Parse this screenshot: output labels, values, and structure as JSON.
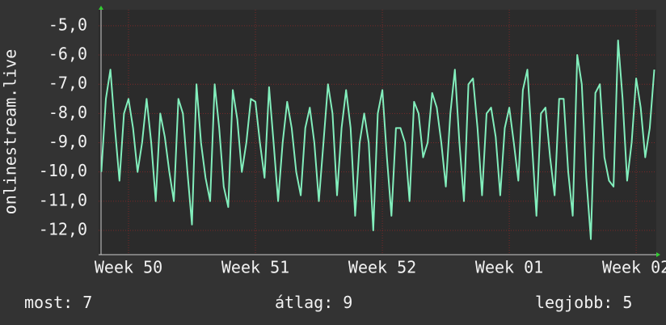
{
  "chart_data": {
    "type": "line",
    "y_label": "onlinestream.live",
    "grid": true,
    "xlim": [
      -1.65,
      29.11
    ],
    "xticks": [
      {
        "value": 0,
        "label": "Week 50"
      },
      {
        "value": 7,
        "label": "Week 51"
      },
      {
        "value": 14,
        "label": "Week 52"
      },
      {
        "value": 21,
        "label": "Week 01"
      },
      {
        "value": 28,
        "label": "Week 02"
      }
    ],
    "ylim": [
      -12.83,
      -4.45
    ],
    "yticks": [
      {
        "value": -5,
        "label": "-5,0"
      },
      {
        "value": -6,
        "label": "-6,0"
      },
      {
        "value": -7,
        "label": "-7,0"
      },
      {
        "value": -8,
        "label": "-8,0"
      },
      {
        "value": -9,
        "label": "-9,0"
      },
      {
        "value": -10,
        "label": "-10,0"
      },
      {
        "value": -11,
        "label": "-11,0"
      },
      {
        "value": -12,
        "label": "-12,0"
      }
    ],
    "x": [
      -1.5,
      -1.25,
      -1,
      -0.75,
      -0.5,
      -0.25,
      0,
      0.25,
      0.5,
      0.75,
      1,
      1.25,
      1.5,
      1.75,
      2,
      2.25,
      2.5,
      2.75,
      3,
      3.25,
      3.5,
      3.75,
      4,
      4.25,
      4.5,
      4.75,
      5,
      5.25,
      5.5,
      5.75,
      6,
      6.25,
      6.5,
      6.75,
      7,
      7.25,
      7.5,
      7.75,
      8,
      8.25,
      8.5,
      8.75,
      9,
      9.25,
      9.5,
      9.75,
      10,
      10.25,
      10.5,
      10.75,
      11,
      11.25,
      11.5,
      11.75,
      12,
      12.25,
      12.5,
      12.75,
      13,
      13.25,
      13.5,
      13.75,
      14,
      14.25,
      14.5,
      14.75,
      15,
      15.25,
      15.5,
      15.75,
      16,
      16.25,
      16.5,
      16.75,
      17,
      17.25,
      17.5,
      17.75,
      18,
      18.25,
      18.5,
      18.75,
      19,
      19.25,
      19.5,
      19.75,
      20,
      20.25,
      20.5,
      20.75,
      21,
      21.25,
      21.5,
      21.75,
      22,
      22.25,
      22.5,
      22.75,
      23,
      23.25,
      23.5,
      23.75,
      24,
      24.25,
      24.5,
      24.75,
      25,
      25.25,
      25.5,
      25.75,
      26,
      26.25,
      26.5,
      26.75,
      27,
      27.25,
      27.5,
      27.75,
      28,
      28.25,
      28.5,
      28.75,
      29
    ],
    "series": [
      {
        "color": "#82eebc",
        "values": [
          -10,
          -7.5,
          -6.5,
          -8.5,
          -10.3,
          -8,
          -7.5,
          -8.5,
          -10,
          -9,
          -7.5,
          -9,
          -11,
          -8,
          -8.8,
          -10,
          -11,
          -7.5,
          -8,
          -10,
          -11.8,
          -7,
          -9,
          -10.2,
          -11,
          -7,
          -8.5,
          -10.5,
          -11.2,
          -7.2,
          -8.2,
          -10,
          -9,
          -7.5,
          -7.6,
          -9,
          -10.2,
          -7.1,
          -9,
          -11,
          -9,
          -7.6,
          -8.5,
          -10,
          -10.8,
          -8.5,
          -7.8,
          -9,
          -11,
          -9,
          -7,
          -8,
          -10.8,
          -8.5,
          -7.2,
          -8.5,
          -11.5,
          -9,
          -8,
          -9,
          -12,
          -8,
          -7.2,
          -9.5,
          -11.5,
          -8.5,
          -8.5,
          -9,
          -11,
          -7.6,
          -8,
          -9.5,
          -9,
          -7.3,
          -7.8,
          -9,
          -10.5,
          -8,
          -6.5,
          -9,
          -11,
          -7,
          -6.8,
          -8.5,
          -10.8,
          -8,
          -7.8,
          -8.8,
          -10.8,
          -8.5,
          -7.8,
          -9,
          -10.3,
          -7.2,
          -6.5,
          -9,
          -11.5,
          -8,
          -7.8,
          -9.5,
          -10.8,
          -7.5,
          -7.5,
          -10,
          -11.5,
          -6,
          -7,
          -10.2,
          -12.3,
          -7.3,
          -7,
          -9.5,
          -10.3,
          -10.5,
          -5.5,
          -7.5,
          -10.3,
          -9,
          -6.8,
          -7.8,
          -9.5,
          -8.5,
          -6.5
        ]
      }
    ],
    "stats": [
      {
        "label": "most:",
        "value": 7
      },
      {
        "label": "átlag:",
        "value": 9
      },
      {
        "label": "legjobb:",
        "value": 5
      }
    ]
  }
}
